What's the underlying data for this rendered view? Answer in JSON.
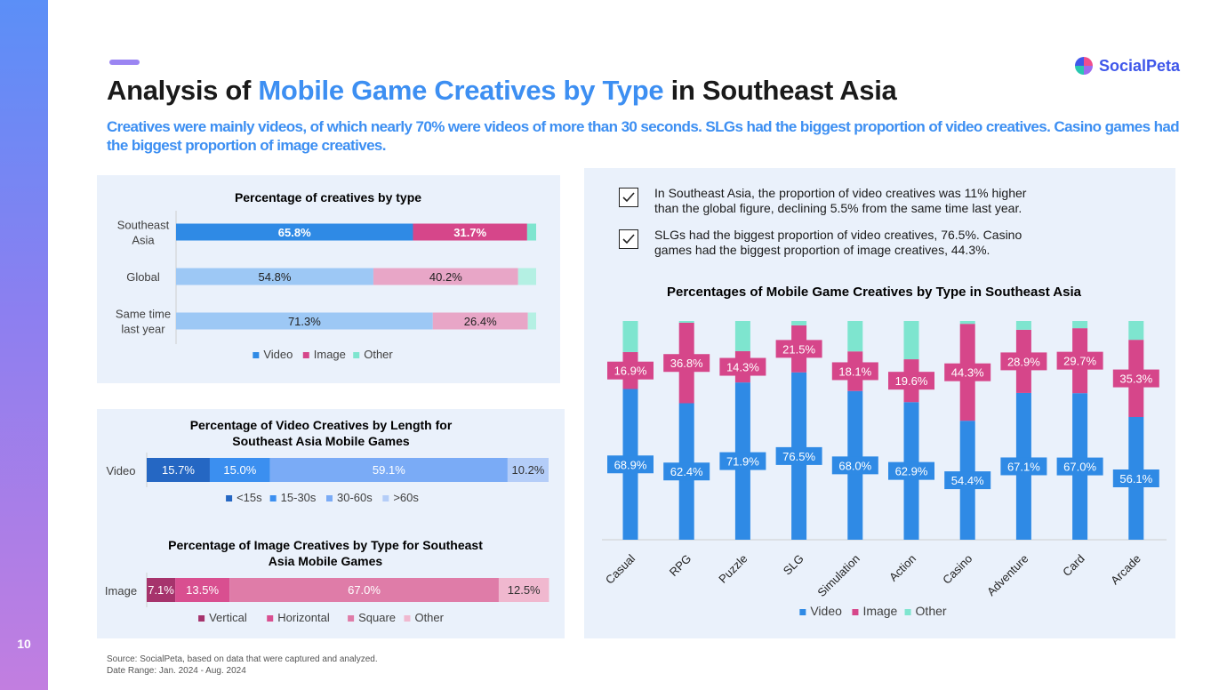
{
  "page_number": "10",
  "logo": {
    "text": "SocialPeta"
  },
  "title": {
    "part1": "Analysis of ",
    "highlight": "Mobile Game Creatives by Type",
    "part2": " in Southeast Asia"
  },
  "subtitle": "Creatives were mainly videos, of which nearly 70% were videos of more than 30 seconds. SLGs had the biggest proportion of video creatives. Casino games had the biggest proportion of image creatives.",
  "insights": [
    "In Southeast Asia, the proportion of video creatives was 11% higher than the global figure, declining 5.5% from the same time last year.",
    "SLGs had the biggest proportion of video creatives, 76.5%. Casino games had the biggest proportion of image creatives, 44.3%."
  ],
  "source": {
    "line1": "Source: SocialPeta, based on data that were captured and analyzed.",
    "line2": "Date Range: Jan. 2024 - Aug. 2024"
  },
  "chart_data": [
    {
      "id": "by_type",
      "type": "bar",
      "orientation": "horizontal",
      "stacked": true,
      "title": "Percentage of creatives by type",
      "categories": [
        "Southeast Asia",
        "Global",
        "Same time last year"
      ],
      "category_lines": [
        [
          "Southeast",
          "Asia"
        ],
        [
          "Global"
        ],
        [
          "Same time",
          "last year"
        ]
      ],
      "series": [
        {
          "name": "Video",
          "values": [
            65.8,
            54.8,
            71.3
          ],
          "labels": [
            "65.8%",
            "54.8%",
            "71.3%"
          ]
        },
        {
          "name": "Image",
          "values": [
            31.7,
            40.2,
            26.4
          ],
          "labels": [
            "31.7%",
            "40.2%",
            "26.4%"
          ]
        },
        {
          "name": "Other",
          "values": [
            2.5,
            5.0,
            2.3
          ]
        }
      ],
      "colors": {
        "Video": [
          "#2f8ae5",
          "#9dc8f5",
          "#9dc8f5"
        ],
        "Image": [
          "#d6468a",
          "#e8a6c7",
          "#e8a6c7"
        ],
        "Other": [
          "#7ee5cf",
          "#b4f0e3",
          "#b4f0e3"
        ]
      },
      "legend_colors": [
        "#2f8ae5",
        "#d6468a",
        "#7ee5cf"
      ],
      "label_colors": [
        "#ffffff",
        "#222222",
        "#222222"
      ],
      "legend_position": "bottom"
    },
    {
      "id": "video_length",
      "type": "bar",
      "orientation": "horizontal",
      "stacked": true,
      "title": "Percentage of Video Creatives by Length for Southeast Asia Mobile Games",
      "title_lines": [
        "Percentage of Video Creatives by Length for",
        "Southeast Asia Mobile Games"
      ],
      "categories": [
        "Video"
      ],
      "series": [
        {
          "name": "<15s",
          "values": [
            15.7
          ],
          "labels": [
            "15.7%"
          ],
          "color": "#2567c3",
          "label_color": "#ffffff"
        },
        {
          "name": "15-30s",
          "values": [
            15.0
          ],
          "labels": [
            "15.0%"
          ],
          "color": "#3b8ff0",
          "label_color": "#ffffff"
        },
        {
          "name": "30-60s",
          "values": [
            59.1
          ],
          "labels": [
            "59.1%"
          ],
          "color": "#7aabf6",
          "label_color": "#ffffff"
        },
        {
          "name": ">60s",
          "values": [
            10.2
          ],
          "labels": [
            "10.2%"
          ],
          "color": "#b4cdf8",
          "label_color": "#333333"
        }
      ],
      "legend_position": "bottom"
    },
    {
      "id": "image_type",
      "type": "bar",
      "orientation": "horizontal",
      "stacked": true,
      "title": "Percentage of Image Creatives by Type for Southeast Asia Mobile Games",
      "title_lines": [
        "Percentage of Image Creatives by Type for Southeast",
        "Asia Mobile Games"
      ],
      "categories": [
        "Image"
      ],
      "series": [
        {
          "name": "Vertical",
          "values": [
            7.1
          ],
          "labels": [
            "7.1%"
          ],
          "color": "#a6336c",
          "label_color": "#ffffff"
        },
        {
          "name": "Horizontal",
          "values": [
            13.5
          ],
          "labels": [
            "13.5%"
          ],
          "color": "#d94f90",
          "label_color": "#ffffff"
        },
        {
          "name": "Square",
          "values": [
            67.0
          ],
          "labels": [
            "67.0%"
          ],
          "color": "#df7ca8",
          "label_color": "#ffffff"
        },
        {
          "name": "Other",
          "values": [
            12.5
          ],
          "labels": [
            "12.5%"
          ],
          "color": "#f0b8cf",
          "label_color": "#333333"
        }
      ],
      "legend_position": "bottom"
    },
    {
      "id": "by_genre",
      "type": "bar",
      "orientation": "vertical",
      "stacked": true,
      "title": "Percentages of Mobile Game Creatives by Type in Southeast Asia",
      "categories": [
        "Casual",
        "RPG",
        "Puzzle",
        "SLG",
        "Simulation",
        "Action",
        "Casino",
        "Adventure",
        "Card",
        "Arcade"
      ],
      "series": [
        {
          "name": "Video",
          "values": [
            68.9,
            62.4,
            71.9,
            76.5,
            68.0,
            62.9,
            54.4,
            67.1,
            67.0,
            56.1
          ],
          "labels": [
            "68.9%",
            "62.4%",
            "71.9%",
            "76.5%",
            "68.0%",
            "62.9%",
            "54.4%",
            "67.1%",
            "67.0%",
            "56.1%"
          ],
          "color": "#2f8ae5"
        },
        {
          "name": "Image",
          "values": [
            16.9,
            36.8,
            14.3,
            21.5,
            18.1,
            19.6,
            44.3,
            28.9,
            29.7,
            35.3
          ],
          "labels": [
            "16.9%",
            "36.8%",
            "14.3%",
            "21.5%",
            "18.1%",
            "19.6%",
            "44.3%",
            "28.9%",
            "29.7%",
            "35.3%"
          ],
          "color": "#d6468a"
        },
        {
          "name": "Other",
          "values": [
            14.2,
            0.8,
            13.8,
            2.0,
            13.9,
            17.5,
            1.3,
            4.0,
            3.3,
            8.6
          ],
          "color": "#7ee5cf"
        }
      ],
      "ylim": [
        0,
        100
      ],
      "legend_position": "bottom"
    }
  ]
}
